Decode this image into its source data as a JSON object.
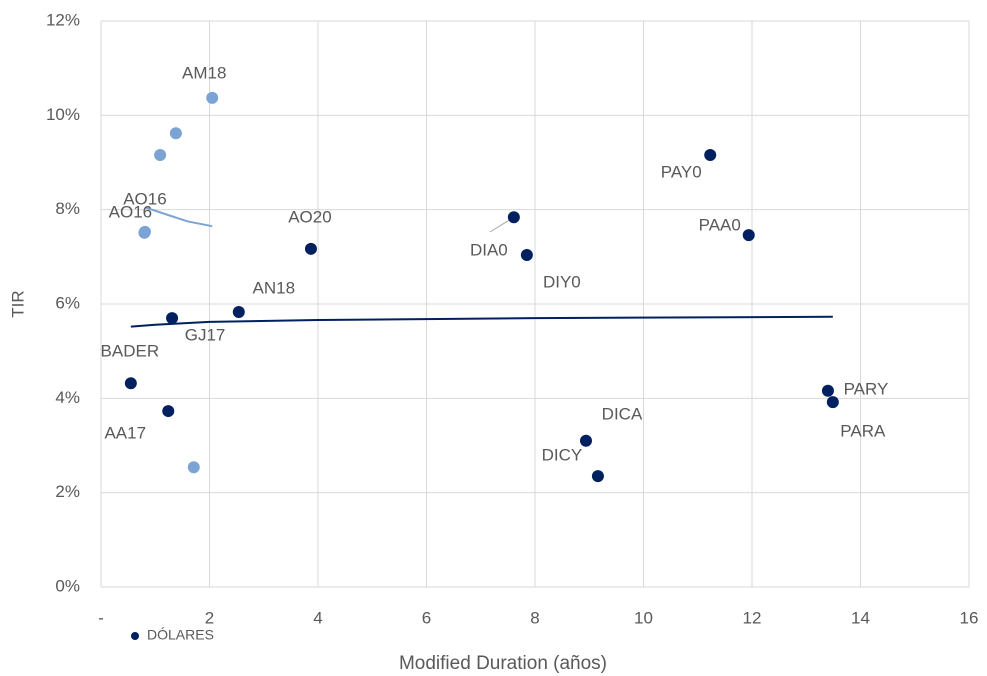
{
  "chart_data": {
    "type": "scatter",
    "x_label": "Modified Duration (años)",
    "y_label": "TIR",
    "xlim": [
      0,
      16
    ],
    "ylim": [
      0,
      12
    ],
    "xticks": [
      {
        "value": 0,
        "label": "-"
      },
      2,
      4,
      6,
      8,
      10,
      12,
      14,
      16
    ],
    "yticks": [
      {
        "value": 0,
        "label": "0%"
      },
      {
        "value": 2,
        "label": "2%"
      },
      {
        "value": 4,
        "label": "4%"
      },
      {
        "value": 6,
        "label": "6%"
      },
      {
        "value": 8,
        "label": "8%"
      },
      {
        "value": 10,
        "label": "10%"
      },
      {
        "value": 12,
        "label": "12%"
      }
    ],
    "grid": true,
    "legend": "bottom-left",
    "series": [
      {
        "name": "DÓLARES",
        "color": "#002060",
        "x": [
          0.55,
          1.24,
          1.31,
          2.54,
          3.87,
          7.61,
          7.85,
          8.94,
          9.16,
          11.23,
          11.94,
          13.4,
          13.49
        ],
        "values": [
          4.32,
          3.73,
          5.7,
          5.83,
          7.17,
          7.84,
          7.04,
          3.1,
          2.35,
          9.16,
          7.46,
          4.16,
          3.92
        ],
        "labels": [
          "BADER",
          "AA17",
          "GJ17",
          "AN18",
          "AO20",
          "DIA0",
          "DIY0",
          "DICA",
          "DICY",
          "PAY0",
          "PAA0",
          "PARY",
          "PARA"
        ],
        "trendline": {
          "x": [
            0.55,
            1,
            2,
            4,
            8,
            13.49
          ],
          "values": [
            5.52,
            5.56,
            5.62,
            5.66,
            5.7,
            5.73
          ]
        }
      },
      {
        "color": "#7ba3d3",
        "x": [
          2.05,
          1.38,
          1.09,
          0.81,
          0.8,
          1.71
        ],
        "values": [
          10.37,
          9.62,
          9.16,
          7.53,
          7.51,
          2.54
        ],
        "labels": [
          "AM18",
          null,
          null,
          "AO16",
          "AO16",
          null
        ],
        "trendline": {
          "x": [
            0.81,
            1.2,
            1.6,
            2.05
          ],
          "values": [
            8.05,
            7.9,
            7.75,
            7.65
          ]
        }
      }
    ]
  }
}
